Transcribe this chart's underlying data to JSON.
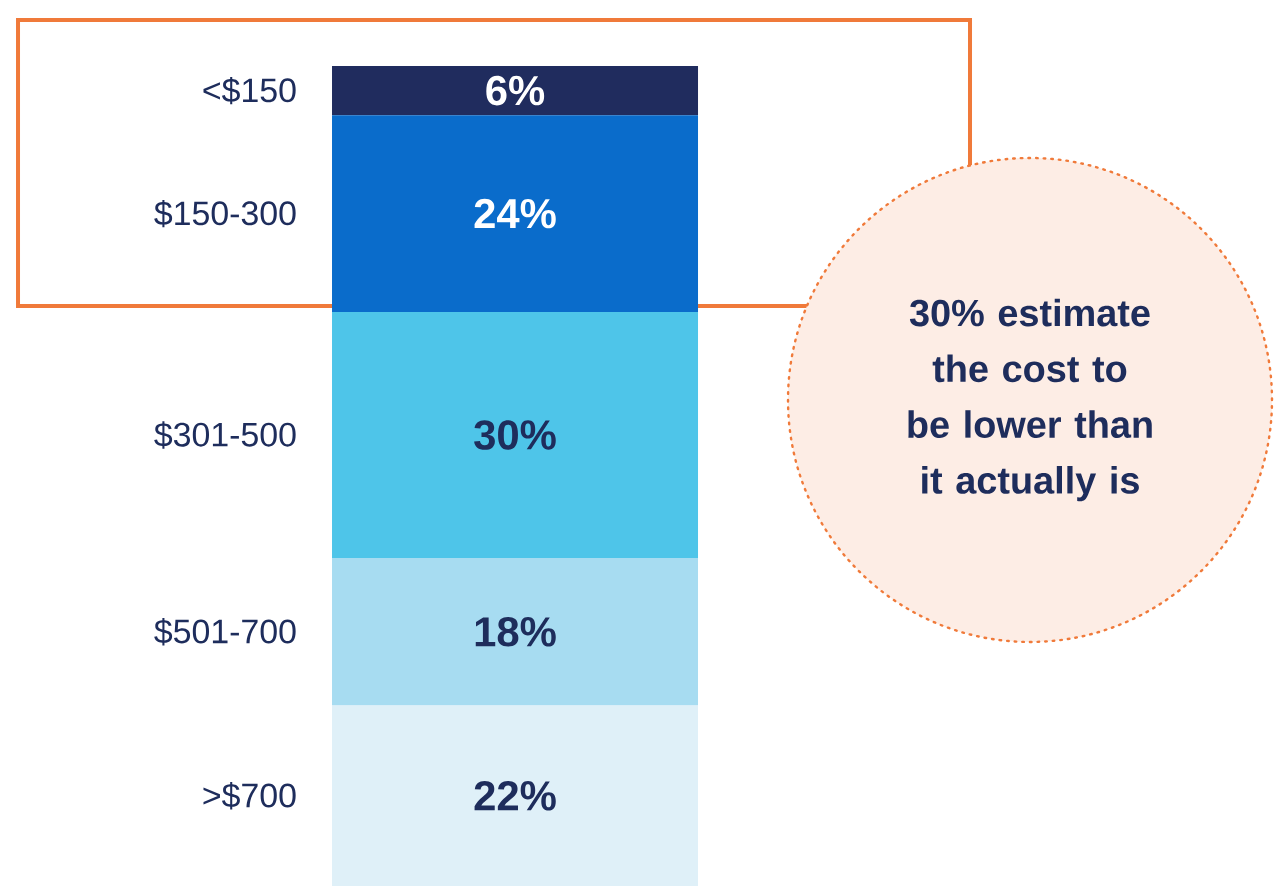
{
  "chart_data": {
    "type": "bar",
    "stacked": true,
    "categories": [
      null
    ],
    "series": [
      {
        "name": ">$700",
        "color": "#dff0f8",
        "values": [
          22
        ],
        "value_labels": [
          "22%"
        ]
      },
      {
        "name": "$501-700",
        "color": "#a7dcf1",
        "values": [
          18
        ],
        "value_labels": [
          "18%"
        ]
      },
      {
        "name": "$301-500",
        "color": "#4ec5e9",
        "values": [
          30
        ],
        "value_labels": [
          "30%"
        ]
      },
      {
        "name": "$150-300",
        "color": "#0a6ccb",
        "values": [
          24
        ],
        "value_labels": [
          "24%"
        ]
      },
      {
        "name": "<$150",
        "color": "#202c5e",
        "values": [
          6
        ],
        "value_labels": [
          "6%"
        ]
      }
    ],
    "annotations": [
      "30% estimate the cost to be lower than it actually is"
    ]
  }
}
